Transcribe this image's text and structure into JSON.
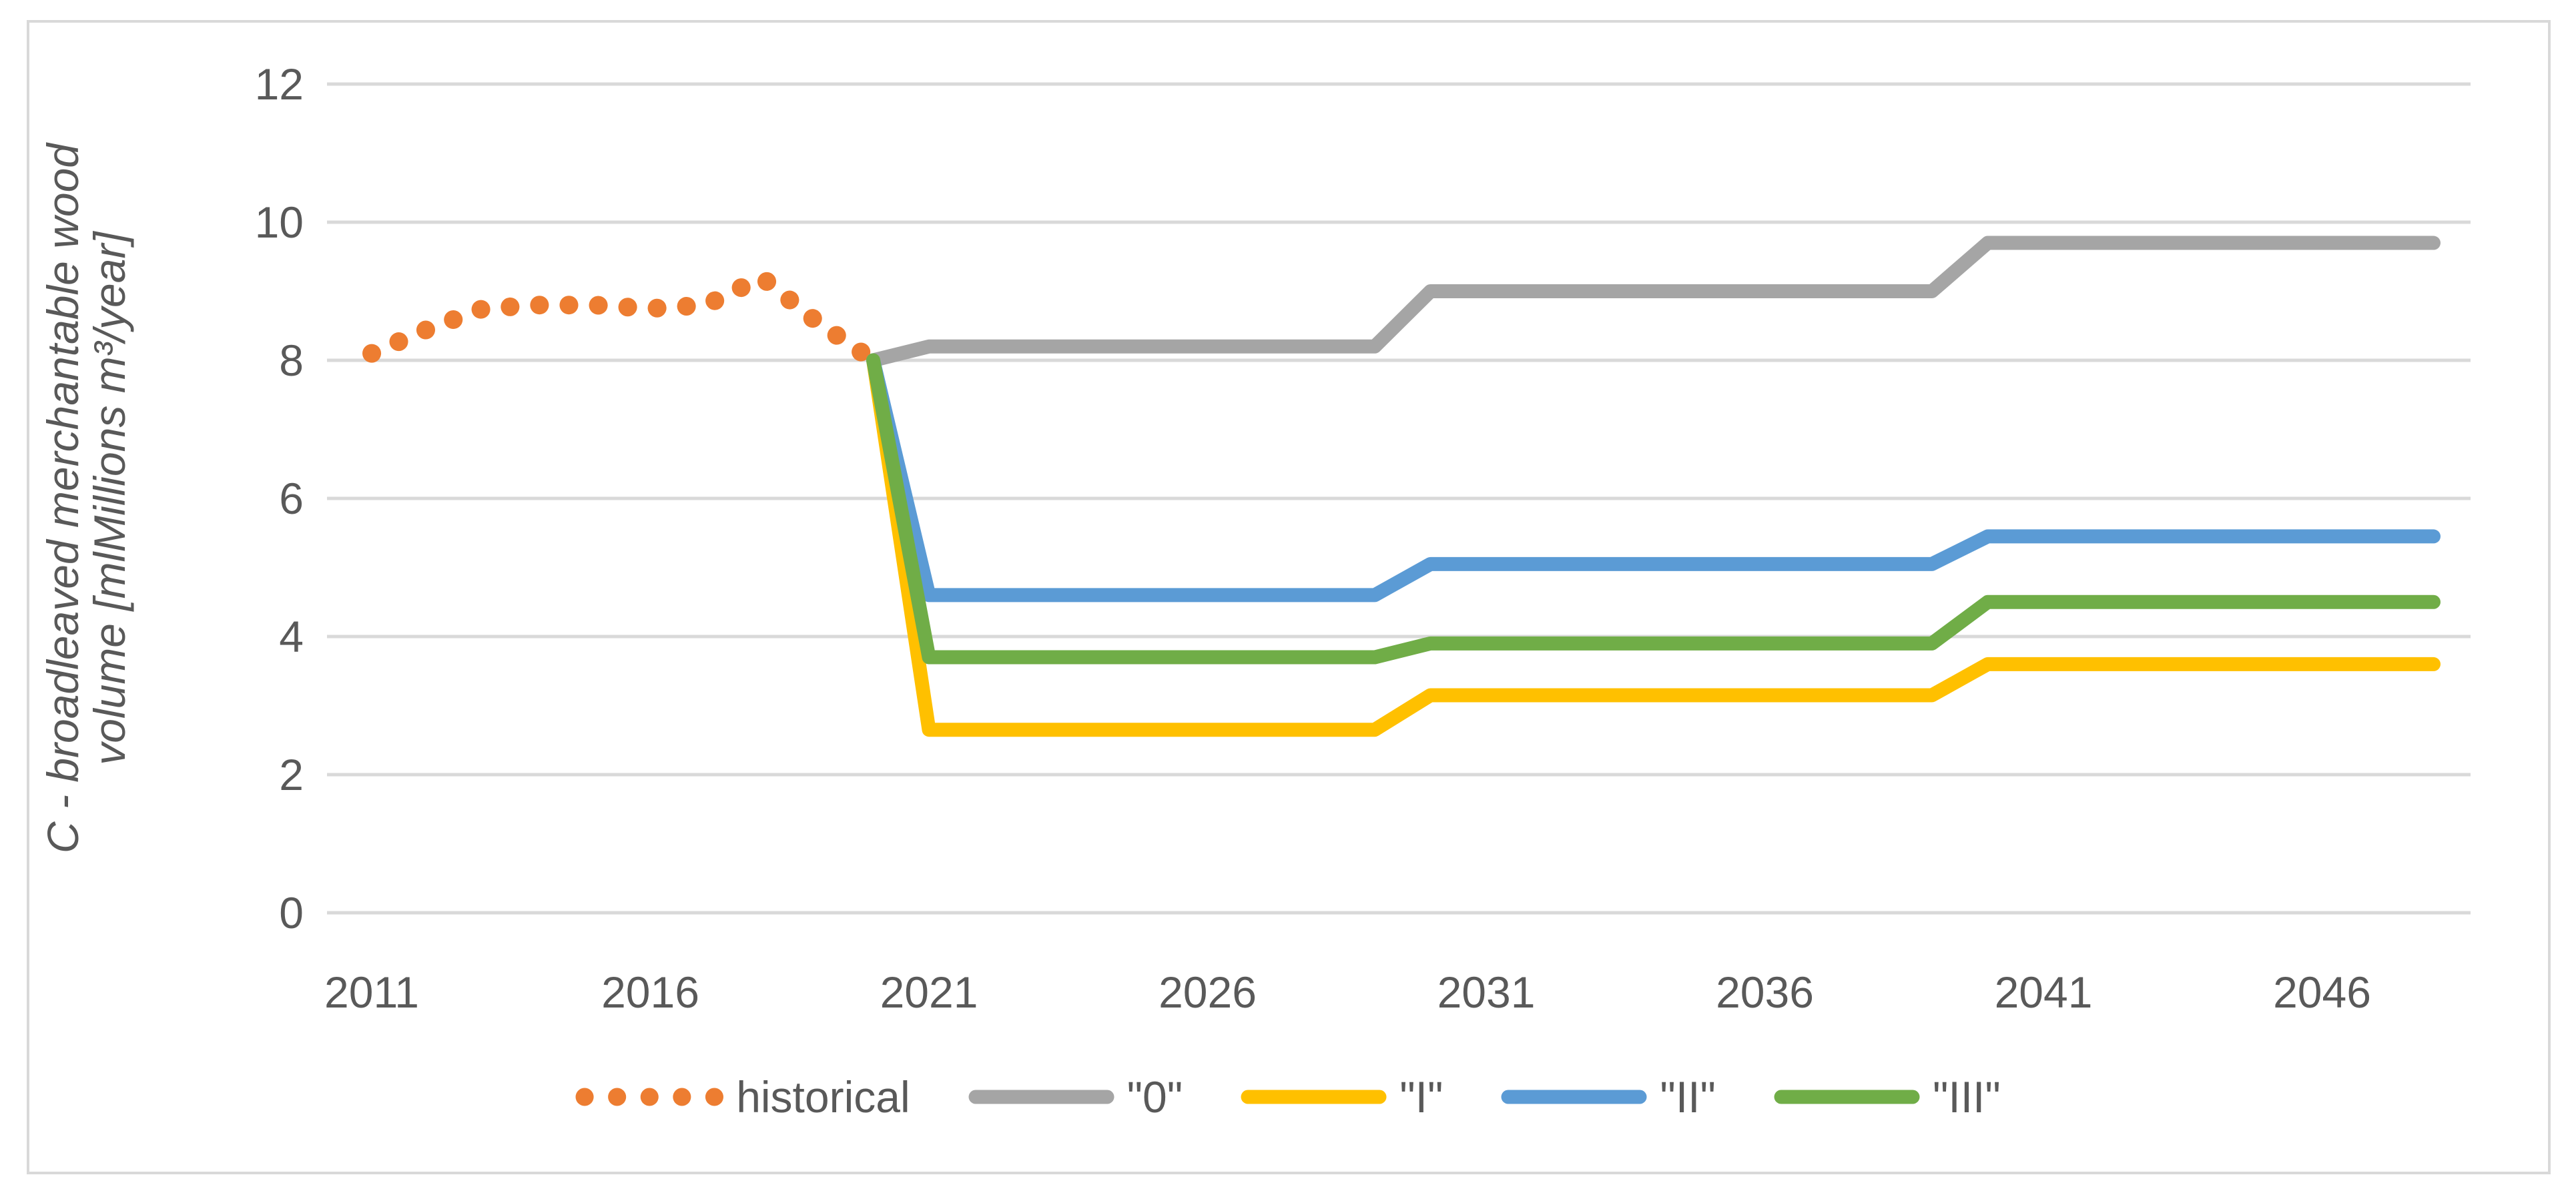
{
  "figure": {
    "background": "#ffffff",
    "border_color": "#d9d9d9",
    "gridline_color": "#d9d9d9",
    "axis_text_color": "#595959"
  },
  "chart_data": {
    "type": "line",
    "title": "",
    "ylabel_line1": "C - broadleaved merchantable wood",
    "ylabel_line2": "volume [mlMillions m³/year]",
    "xlabel": "",
    "ylim": [
      0,
      12
    ],
    "yticks": [
      0,
      2,
      4,
      6,
      8,
      10,
      12
    ],
    "xticks": [
      2011,
      2016,
      2021,
      2026,
      2031,
      2036,
      2041,
      2046
    ],
    "x_range": [
      2011,
      2048
    ],
    "grid": true,
    "legend_position": "bottom",
    "series": [
      {
        "id": "historical",
        "name": "historical",
        "color": "#ED7D31",
        "style": "dotted",
        "x": [
          2011,
          2012,
          2013,
          2014,
          2015,
          2016,
          2017,
          2018,
          2019,
          2020
        ],
        "values": [
          8.1,
          8.45,
          8.75,
          8.8,
          8.8,
          8.75,
          8.8,
          9.2,
          8.55,
          8.0
        ]
      },
      {
        "id": "scenario-0",
        "name": "\"0\"",
        "color": "#A5A5A5",
        "style": "solid",
        "x": [
          2020,
          2021,
          2029,
          2030,
          2039,
          2040,
          2048
        ],
        "values": [
          8.0,
          8.2,
          8.2,
          9.0,
          9.0,
          9.7,
          9.7
        ]
      },
      {
        "id": "scenario-I",
        "name": "\"I\"",
        "color": "#FFC000",
        "style": "solid",
        "x": [
          2020,
          2021,
          2029,
          2030,
          2039,
          2040,
          2048
        ],
        "values": [
          8.0,
          2.65,
          2.65,
          3.15,
          3.15,
          3.6,
          3.6
        ]
      },
      {
        "id": "scenario-II",
        "name": "\"II\"",
        "color": "#5B9BD5",
        "style": "solid",
        "x": [
          2020,
          2021,
          2029,
          2030,
          2039,
          2040,
          2048
        ],
        "values": [
          8.0,
          4.6,
          4.6,
          5.05,
          5.05,
          5.45,
          5.45
        ]
      },
      {
        "id": "scenario-III",
        "name": "\"III\"",
        "color": "#70AD47",
        "style": "solid",
        "x": [
          2020,
          2021,
          2029,
          2030,
          2039,
          2040,
          2048
        ],
        "values": [
          8.0,
          3.7,
          3.7,
          3.9,
          3.9,
          4.5,
          4.5
        ]
      }
    ]
  }
}
